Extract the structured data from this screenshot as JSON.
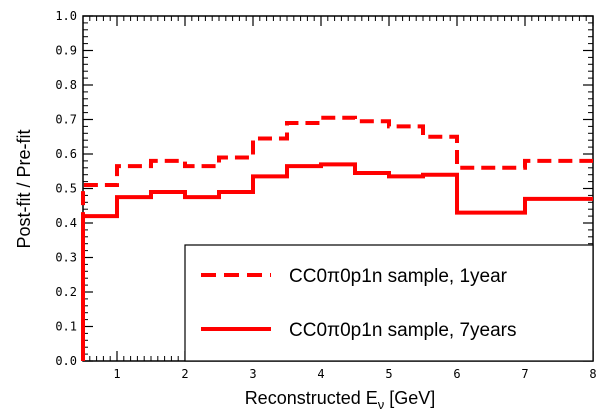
{
  "chart_data": {
    "type": "line",
    "xlabel": "Reconstructed E",
    "xlabel_sub": "ν",
    "xlabel_unit": " [GeV]",
    "ylabel": "Post-fit / Pre-fit",
    "xlim": [
      0.5,
      8
    ],
    "ylim": [
      0.0,
      1.0
    ],
    "x_ticks": [
      1,
      2,
      3,
      4,
      5,
      6,
      7,
      8
    ],
    "x_tick_labels": [
      "1",
      "2",
      "3",
      "4",
      "5",
      "6",
      "7",
      "8"
    ],
    "y_ticks": [
      0.0,
      0.1,
      0.2,
      0.3,
      0.4,
      0.5,
      0.6,
      0.7,
      0.8,
      0.9,
      1.0
    ],
    "y_tick_labels": [
      "0.0",
      "0.1",
      "0.2",
      "0.3",
      "0.4",
      "0.5",
      "0.6",
      "0.7",
      "0.8",
      "0.9",
      "1.0"
    ],
    "bin_edges": [
      0.5,
      1.0,
      1.5,
      2.0,
      2.5,
      3.0,
      3.5,
      4.0,
      4.5,
      5.0,
      5.5,
      6.0,
      7.0,
      8.0
    ],
    "color": "#ff0000",
    "legend_position": "lower-right",
    "series": [
      {
        "name": "CC0π0p1n sample, 1year",
        "style": "dashed",
        "low_edge_value": 0.33,
        "values": [
          0.51,
          0.565,
          0.58,
          0.565,
          0.59,
          0.645,
          0.69,
          0.705,
          0.695,
          0.68,
          0.65,
          0.56,
          0.58
        ]
      },
      {
        "name": "CC0π0p1n sample, 7years",
        "style": "solid",
        "low_edge_value": 0.0,
        "values": [
          0.42,
          0.475,
          0.49,
          0.475,
          0.49,
          0.535,
          0.565,
          0.57,
          0.545,
          0.535,
          0.54,
          0.43,
          0.47
        ]
      }
    ]
  }
}
